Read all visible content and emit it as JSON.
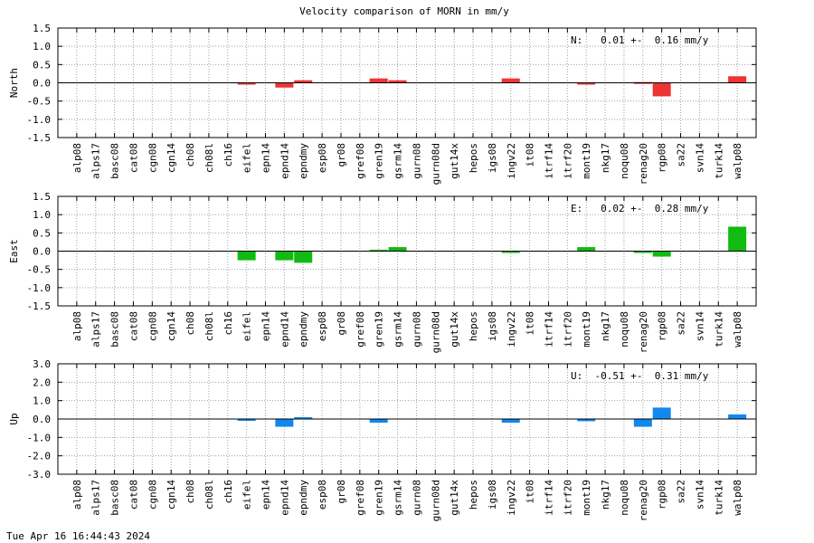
{
  "title": "Velocity comparison of MORN in mm/y",
  "timestamp": "Tue Apr 16 16:44:43 2024",
  "chart_data": [
    {
      "type": "bar",
      "ylabel": "North",
      "ylim": [
        -1.5,
        1.5
      ],
      "yticks": [
        1.5,
        1.0,
        0.5,
        0.0,
        -0.5,
        -1.0,
        -1.5
      ],
      "yticklabels": [
        "1.5",
        "1.0",
        "0.5",
        "0.0",
        "-0.5",
        "-1.0",
        "-1.5"
      ],
      "annotation": "N:   0.01 +-  0.16 mm/y",
      "color": "#ee3333",
      "grid": true,
      "categories": [
        "alp08",
        "alps17",
        "basc08",
        "cat08",
        "cgn08",
        "cgn14",
        "ch08",
        "ch08l",
        "ch16",
        "eifel",
        "epn14",
        "epnd14",
        "epndmy",
        "esp08",
        "gr08",
        "gref08",
        "gren19",
        "gsrm14",
        "gurn08",
        "gurn08d",
        "gut14x",
        "hepos",
        "igs08",
        "ingv22",
        "it08",
        "itrf14",
        "itrf20",
        "mont19",
        "nkg17",
        "noqu08",
        "renag20",
        "rgp08",
        "sa22",
        "svn14",
        "turk14",
        "walp08"
      ],
      "values": [
        null,
        null,
        null,
        null,
        null,
        null,
        null,
        null,
        null,
        -0.05,
        null,
        -0.13,
        0.07,
        null,
        null,
        null,
        0.12,
        0.07,
        null,
        null,
        null,
        null,
        null,
        0.12,
        null,
        null,
        null,
        -0.05,
        null,
        null,
        0.02,
        -0.37,
        null,
        null,
        null,
        0.18
      ]
    },
    {
      "type": "bar",
      "ylabel": "East",
      "ylim": [
        -1.5,
        1.5
      ],
      "yticks": [
        1.5,
        1.0,
        0.5,
        0.0,
        -0.5,
        -1.0,
        -1.5
      ],
      "yticklabels": [
        "1.5",
        "1.0",
        "0.5",
        "0.0",
        "-0.5",
        "-1.0",
        "-1.5"
      ],
      "annotation": "E:   0.02 +-  0.28 mm/y",
      "color": "#11bb11",
      "grid": true,
      "categories": [
        "alp08",
        "alps17",
        "basc08",
        "cat08",
        "cgn08",
        "cgn14",
        "ch08",
        "ch08l",
        "ch16",
        "eifel",
        "epn14",
        "epnd14",
        "epndmy",
        "esp08",
        "gr08",
        "gref08",
        "gren19",
        "gsrm14",
        "gurn08",
        "gurn08d",
        "gut14x",
        "hepos",
        "igs08",
        "ingv22",
        "it08",
        "itrf14",
        "itrf20",
        "mont19",
        "nkg17",
        "noqu08",
        "renag20",
        "rgp08",
        "sa22",
        "svn14",
        "turk14",
        "walp08"
      ],
      "values": [
        null,
        null,
        null,
        null,
        null,
        null,
        null,
        null,
        null,
        -0.25,
        null,
        -0.25,
        -0.32,
        null,
        null,
        null,
        0.04,
        0.11,
        null,
        null,
        null,
        null,
        null,
        -0.05,
        null,
        null,
        null,
        0.11,
        null,
        null,
        -0.05,
        -0.15,
        null,
        null,
        null,
        0.67
      ]
    },
    {
      "type": "bar",
      "ylabel": "Up",
      "ylim": [
        -3.0,
        3.0
      ],
      "yticks": [
        3.0,
        2.0,
        1.0,
        0.0,
        -1.0,
        -2.0,
        -3.0
      ],
      "yticklabels": [
        "3.0",
        "2.0",
        "1.0",
        "0.0",
        "-1.0",
        "-2.0",
        "-3.0"
      ],
      "annotation": "U:  -0.51 +-  0.31 mm/y",
      "color": "#1188ee",
      "grid": true,
      "categories": [
        "alp08",
        "alps17",
        "basc08",
        "cat08",
        "cgn08",
        "cgn14",
        "ch08",
        "ch08l",
        "ch16",
        "eifel",
        "epn14",
        "epnd14",
        "epndmy",
        "esp08",
        "gr08",
        "gref08",
        "gren19",
        "gsrm14",
        "gurn08",
        "gurn08d",
        "gut14x",
        "hepos",
        "igs08",
        "ingv22",
        "it08",
        "itrf14",
        "itrf20",
        "mont19",
        "nkg17",
        "noqu08",
        "renag20",
        "rgp08",
        "sa22",
        "svn14",
        "turk14",
        "walp08"
      ],
      "values": [
        null,
        null,
        null,
        null,
        null,
        null,
        null,
        null,
        null,
        -0.08,
        null,
        -0.42,
        0.1,
        null,
        null,
        null,
        -0.2,
        null,
        null,
        null,
        null,
        null,
        null,
        -0.2,
        null,
        null,
        null,
        -0.12,
        null,
        null,
        -0.42,
        0.62,
        null,
        null,
        null,
        0.25
      ]
    }
  ]
}
